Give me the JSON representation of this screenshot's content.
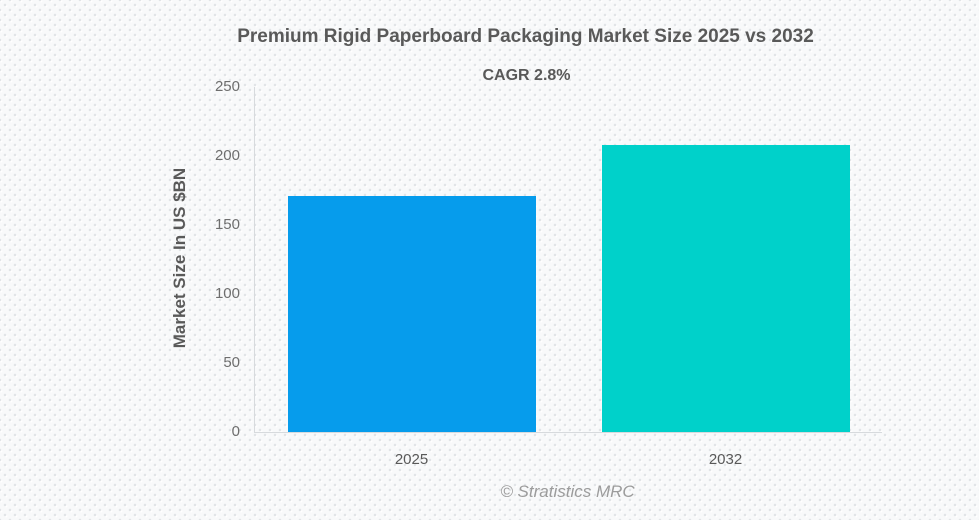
{
  "chart_data": {
    "type": "bar",
    "title": "Premium Rigid Paperboard Packaging Market Size 2025 vs 2032",
    "subtitle": "CAGR 2.8%",
    "categories": [
      "2025",
      "2032"
    ],
    "values": [
      171,
      208
    ],
    "bar_colors": [
      "#069CEC",
      "#00D1CA"
    ],
    "ylabel": "Market Size In US $BN",
    "xlabel": "",
    "ylim": [
      0,
      250
    ],
    "yticks": [
      0,
      50,
      100,
      150,
      200,
      250
    ],
    "grid": false,
    "legend": false,
    "source": "© Stratistics MRC"
  },
  "colors": {
    "title_text": "#595959",
    "tick_text": "#6e6e6e",
    "axis_line": "#d7dadd",
    "source_text": "#9c9c9c",
    "background": "#f8f9fa"
  }
}
